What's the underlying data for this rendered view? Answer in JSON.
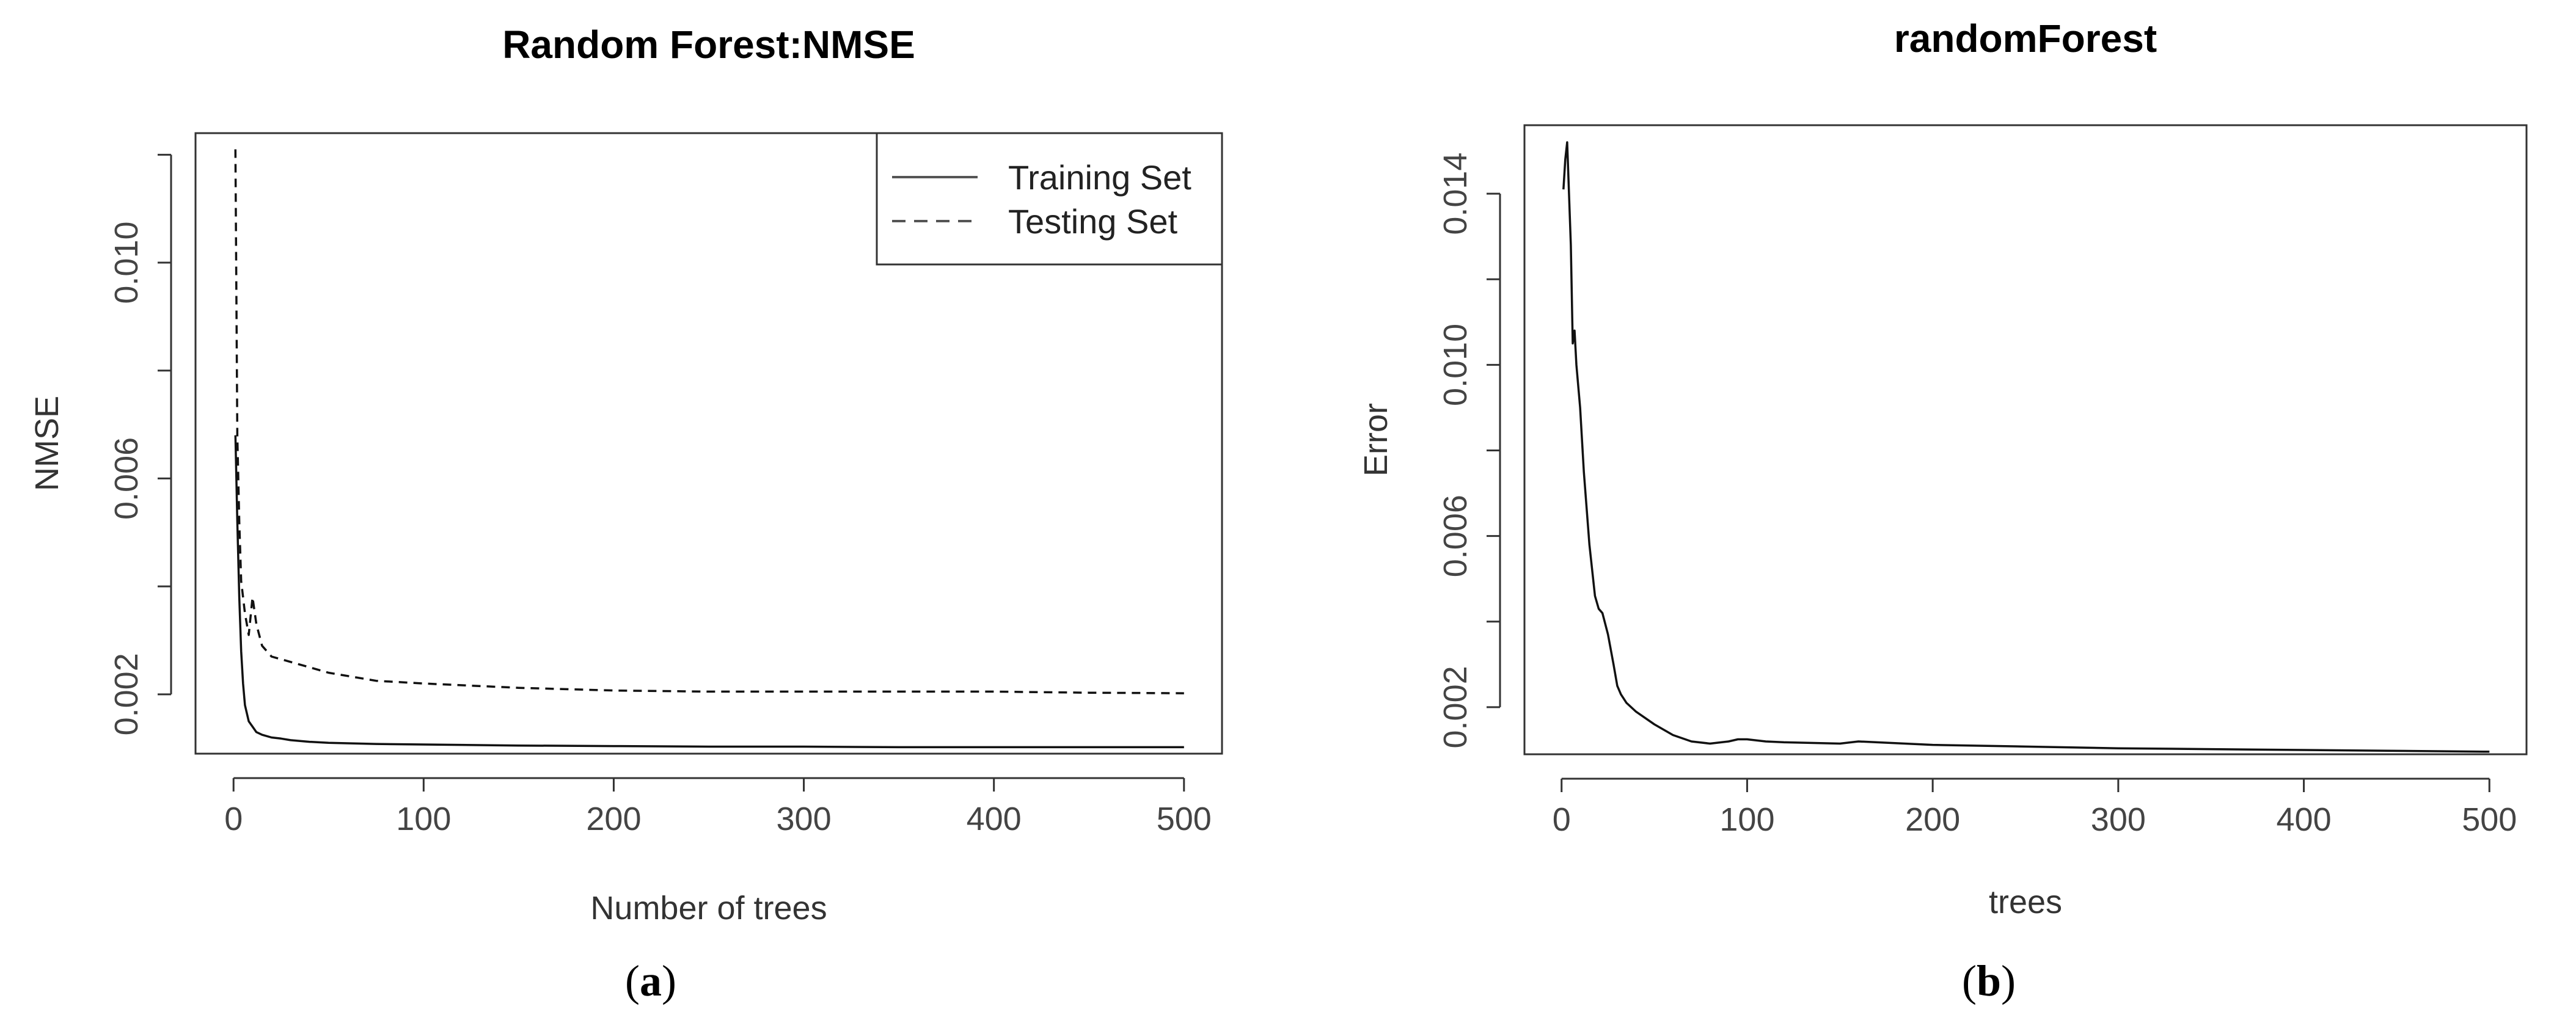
{
  "chart_data": [
    {
      "type": "line",
      "panel_label": "a",
      "title": "Random Forest:NMSE",
      "xlabel": "Number of trees",
      "ylabel": "NMSE",
      "xlim": [
        0,
        500
      ],
      "ylim": [
        0.0009,
        0.0124
      ],
      "x_ticks": [
        "0",
        "100",
        "200",
        "300",
        "400",
        "500"
      ],
      "y_ticks": [
        "0.002",
        "0.006",
        "0.010"
      ],
      "legend_position": "top-right",
      "grid": false,
      "series": [
        {
          "name": "Training Set",
          "style": "solid",
          "x": [
            1,
            2,
            3,
            4,
            5,
            6,
            8,
            10,
            12,
            15,
            20,
            25,
            30,
            40,
            50,
            75,
            100,
            150,
            200,
            250,
            300,
            350,
            400,
            450,
            500
          ],
          "y": [
            0.0068,
            0.0052,
            0.0038,
            0.0028,
            0.0022,
            0.0018,
            0.0015,
            0.0014,
            0.0013,
            0.00125,
            0.0012,
            0.00118,
            0.00115,
            0.00112,
            0.0011,
            0.00108,
            0.00107,
            0.00105,
            0.00104,
            0.00103,
            0.00103,
            0.00102,
            0.00102,
            0.00102,
            0.00102
          ]
        },
        {
          "name": "Testing Set",
          "style": "dashed",
          "x": [
            1,
            2,
            3,
            4,
            6,
            8,
            10,
            12,
            15,
            20,
            25,
            30,
            40,
            50,
            75,
            100,
            150,
            200,
            250,
            300,
            350,
            400,
            450,
            500
          ],
          "y": [
            0.0121,
            0.0068,
            0.0052,
            0.0041,
            0.0035,
            0.0031,
            0.0038,
            0.0033,
            0.0029,
            0.0027,
            0.00265,
            0.0026,
            0.0025,
            0.0024,
            0.00225,
            0.0022,
            0.00212,
            0.00207,
            0.00205,
            0.00205,
            0.00205,
            0.00205,
            0.00203,
            0.00202
          ]
        }
      ]
    },
    {
      "type": "line",
      "panel_label": "b",
      "title": "randomForest",
      "xlabel": "trees",
      "ylabel": "Error",
      "xlim": [
        0,
        500
      ],
      "ylim": [
        0.0009,
        0.0156
      ],
      "x_ticks": [
        "0",
        "100",
        "200",
        "300",
        "400",
        "500"
      ],
      "y_ticks": [
        "0.002",
        "0.006",
        "0.010",
        "0.014"
      ],
      "grid": false,
      "series": [
        {
          "x": [
            1,
            2,
            3,
            4,
            5,
            6,
            7,
            8,
            10,
            12,
            15,
            18,
            20,
            22,
            25,
            28,
            30,
            32,
            35,
            40,
            50,
            60,
            70,
            80,
            90,
            95,
            100,
            110,
            120,
            150,
            160,
            170,
            200,
            250,
            300,
            350,
            400,
            450,
            500
          ],
          "y": [
            0.0141,
            0.0148,
            0.0152,
            0.014,
            0.0128,
            0.0105,
            0.0108,
            0.01,
            0.009,
            0.0075,
            0.0058,
            0.0046,
            0.0043,
            0.0042,
            0.0037,
            0.003,
            0.0025,
            0.0023,
            0.0021,
            0.0019,
            0.0016,
            0.00135,
            0.0012,
            0.00115,
            0.0012,
            0.00125,
            0.00125,
            0.0012,
            0.00118,
            0.00115,
            0.0012,
            0.00118,
            0.00112,
            0.00108,
            0.00104,
            0.00102,
            0.001,
            0.00098,
            0.00096
          ]
        }
      ]
    }
  ]
}
